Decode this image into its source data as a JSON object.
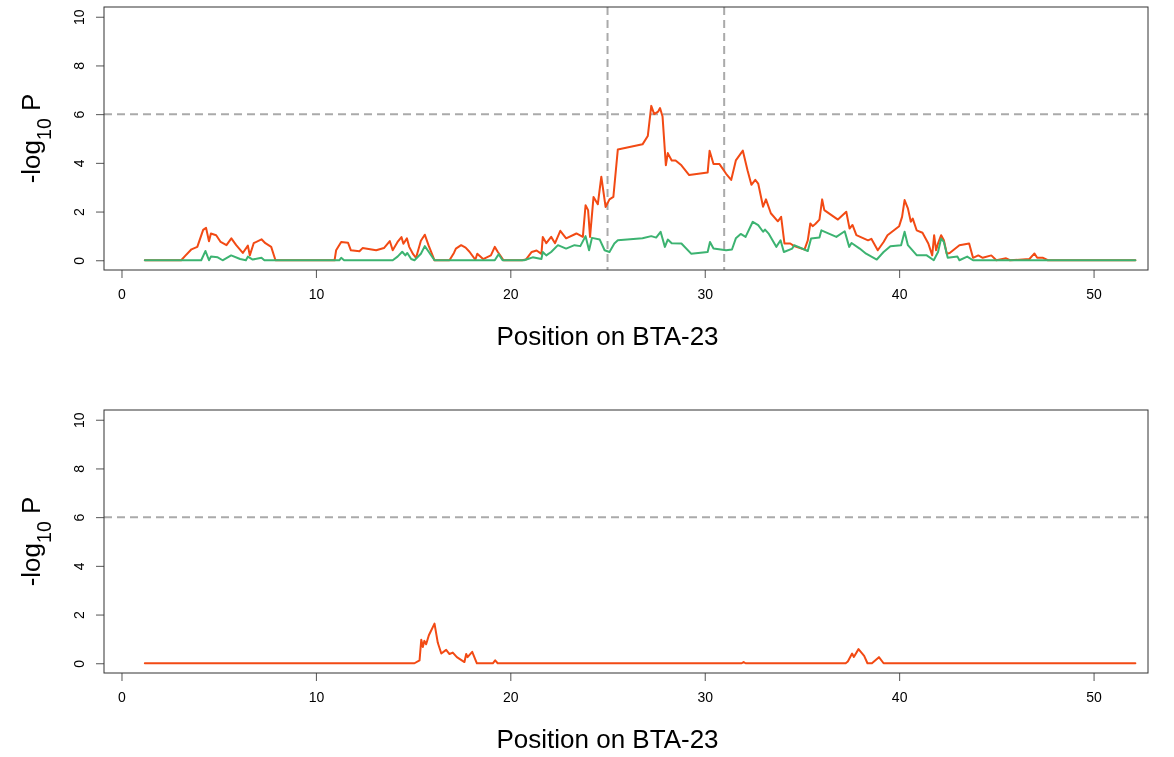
{
  "chart_data": [
    {
      "type": "line",
      "xlabel": "Position on BTA-23",
      "ylabel": "-log$_{10}$ P",
      "xlim": [
        -0.9,
        52.8
      ],
      "ylim": [
        -0.4,
        10.4
      ],
      "xticks": [
        0,
        10,
        20,
        30,
        40,
        50
      ],
      "yticks": [
        0,
        2,
        4,
        6,
        8,
        10
      ],
      "grid": false,
      "line_style": "solid",
      "marker": "none",
      "ref_lines": [
        {
          "axis": "y",
          "value": 6,
          "color": "#aaaaaa",
          "line_style": "dashed"
        },
        {
          "axis": "x",
          "value": 25,
          "color": "#aaaaaa",
          "line_style": "dashed"
        },
        {
          "axis": "x",
          "value": 31,
          "color": "#aaaaaa",
          "line_style": "dashed"
        }
      ],
      "series": [
        {
          "color": "#f24a14",
          "x": [
            1.2,
            3.07,
            3.3,
            3.6,
            3.9,
            4.2,
            4.35,
            4.5,
            4.6,
            4.87,
            5.1,
            5.4,
            5.65,
            5.9,
            6.24,
            6.5,
            6.6,
            6.8,
            7.2,
            7.4,
            7.7,
            7.92,
            10.96,
            11.04,
            11.3,
            11.65,
            11.8,
            12.24,
            12.4,
            13.1,
            13.5,
            13.8,
            13.95,
            14.2,
            14.4,
            14.5,
            14.68,
            14.8,
            15,
            15.15,
            15.4,
            15.6,
            15.8,
            16.1,
            16.87,
            17.1,
            17.2,
            17.47,
            17.7,
            17.9,
            18.2,
            18.3,
            18.6,
            19,
            19.2,
            19.35,
            19.65,
            20.6,
            20.8,
            21.1,
            21.35,
            21.6,
            21.67,
            21.85,
            22.1,
            22.3,
            22.57,
            22.87,
            23.4,
            23.73,
            23.87,
            24,
            24.1,
            24.28,
            24.5,
            24.68,
            24.9,
            25.1,
            25.3,
            25.53,
            26.8,
            27.07,
            27.25,
            27.4,
            27.6,
            27.7,
            27.83,
            28,
            28.1,
            28.3,
            28.5,
            28.8,
            29.2,
            30.15,
            30.25,
            30.45,
            30.76,
            31.1,
            31.36,
            31.6,
            31.96,
            32.2,
            32.4,
            32.6,
            32.75,
            33,
            33.15,
            33.4,
            33.76,
            33.93,
            34.1,
            34.4,
            34.6,
            35.13,
            35.3,
            35.43,
            35.55,
            35.7,
            35.9,
            36.04,
            36.15,
            36.85,
            37.28,
            37.45,
            37.6,
            37.8,
            38.4,
            38.57,
            38.9,
            39.2,
            39.4,
            40,
            40.15,
            40.28,
            40.45,
            40.6,
            40.7,
            40.9,
            41.2,
            41.5,
            41.7,
            41.8,
            41.9,
            42,
            42.16,
            42.3,
            42.45,
            42.6,
            43.1,
            43.6,
            43.8,
            44.07,
            44.3,
            44.74,
            45,
            45.5,
            45.7,
            46.7,
            46.96,
            47.1,
            47.4,
            47.65,
            52.15
          ],
          "values": [
            0,
            0,
            0.2,
            0.45,
            0.55,
            1.25,
            1.33,
            0.78,
            1.1,
            1.03,
            0.75,
            0.62,
            0.9,
            0.62,
            0.3,
            0.6,
            0.2,
            0.7,
            0.86,
            0.7,
            0.55,
            0,
            0,
            0.41,
            0.75,
            0.72,
            0.41,
            0.37,
            0.5,
            0.41,
            0.5,
            0.79,
            0.41,
            0.75,
            0.95,
            0.68,
            0.9,
            0.55,
            0.25,
            0.1,
            0.8,
            1.05,
            0.6,
            0,
            0,
            0.3,
            0.48,
            0.62,
            0.52,
            0.35,
            0.02,
            0.27,
            0.05,
            0.2,
            0.55,
            0.35,
            0,
            0,
            0.03,
            0.34,
            0.4,
            0.26,
            0.96,
            0.7,
            0.96,
            0.7,
            1.21,
            0.9,
            1.1,
            0.96,
            2.26,
            2.06,
            0.96,
            2.6,
            2.3,
            3.43,
            2.19,
            2.5,
            2.6,
            4.55,
            4.76,
            5.1,
            6.34,
            6,
            6.1,
            6.25,
            5.9,
            3.9,
            4.4,
            4.1,
            4.1,
            3.9,
            3.5,
            3.6,
            4.5,
            3.95,
            3.95,
            3.55,
            3.3,
            4.1,
            4.5,
            3.7,
            3.1,
            3.3,
            3.15,
            2.2,
            2.5,
            1.93,
            1.6,
            1.78,
            0.69,
            0.69,
            0.58,
            0.44,
            0.82,
            1.51,
            1.4,
            1.5,
            1.67,
            2.5,
            2.06,
            1.67,
            1.99,
            1.3,
            1.45,
            1.03,
            0.82,
            0.88,
            0.41,
            0.75,
            1.03,
            1.4,
            1.78,
            2.47,
            2.13,
            1.58,
            1.71,
            1.23,
            1.13,
            0.69,
            0.2,
            1.03,
            0.41,
            0.69,
            1.03,
            0.82,
            0.27,
            0.3,
            0.62,
            0.69,
            0.1,
            0.2,
            0.1,
            0.2,
            0,
            0.08,
            0,
            0.05,
            0.28,
            0.1,
            0.1,
            0,
            0
          ]
        },
        {
          "color": "#3cb371",
          "x": [
            1.2,
            4.1,
            4.32,
            4.5,
            4.6,
            4.95,
            5.2,
            5.64,
            6.1,
            6.4,
            6.5,
            6.75,
            7.2,
            7.35,
            11.2,
            11.3,
            11.45,
            13.95,
            14.2,
            14.44,
            14.6,
            14.7,
            14.9,
            15.07,
            15.4,
            15.6,
            15.8,
            16.1,
            19.2,
            19.4,
            19.6,
            20.7,
            20.9,
            21.15,
            21.6,
            21.67,
            21.85,
            22.1,
            22.45,
            22.87,
            23.3,
            23.6,
            23.87,
            24.05,
            24.2,
            24.6,
            24.85,
            25.1,
            25.35,
            25.53,
            26.8,
            27.25,
            27.5,
            27.73,
            27.95,
            28.1,
            28.3,
            28.8,
            29.3,
            30.15,
            30.27,
            30.45,
            31.1,
            31.4,
            31.6,
            31.85,
            32.1,
            32.47,
            32.75,
            33,
            33.1,
            33.3,
            33.68,
            33.9,
            34.07,
            34.5,
            34.6,
            35.3,
            35.47,
            35.9,
            36,
            36.77,
            37.2,
            37.43,
            37.55,
            37.97,
            38.3,
            38.85,
            39.2,
            39.55,
            40.1,
            40.28,
            40.45,
            40.9,
            41.4,
            41.78,
            42,
            42.16,
            42.3,
            42.5,
            43,
            43.1,
            43.5,
            43.8,
            52.15
          ],
          "values": [
            0,
            0,
            0.38,
            0,
            0.15,
            0.12,
            0,
            0.2,
            0.05,
            0,
            0.15,
            0.03,
            0.1,
            0,
            0,
            0.1,
            0,
            0,
            0.15,
            0.35,
            0.2,
            0.3,
            0.05,
            0,
            0.27,
            0.58,
            0.35,
            0,
            0,
            0.25,
            0,
            0,
            0.05,
            0.12,
            0.05,
            0.34,
            0.2,
            0.34,
            0.62,
            0.48,
            0.62,
            0.58,
            0.99,
            0.41,
            0.92,
            0.85,
            0.41,
            0.34,
            0.69,
            0.82,
            0.9,
            0.99,
            0.93,
            1.17,
            0.55,
            0.85,
            0.7,
            0.69,
            0.27,
            0.34,
            0.75,
            0.48,
            0.41,
            0.44,
            0.9,
            1.08,
            0.96,
            1.58,
            1.44,
            1.17,
            1.26,
            1.08,
            0.55,
            0.82,
            0.34,
            0.48,
            0.62,
            0.38,
            0.89,
            0.93,
            1.23,
            0.96,
            1.19,
            0.55,
            0.71,
            0.48,
            0.27,
            0.03,
            0.34,
            0.58,
            0.62,
            1.17,
            0.62,
            0.21,
            0.21,
            0,
            0.34,
            0.89,
            0.75,
            0.1,
            0.15,
            0,
            0.15,
            0,
            0
          ]
        }
      ]
    },
    {
      "type": "line",
      "xlabel": "Position on BTA-23",
      "ylabel": "-log$_{10}$ P",
      "xlim": [
        -0.9,
        52.8
      ],
      "ylim": [
        -0.4,
        10.4
      ],
      "xticks": [
        0,
        10,
        20,
        30,
        40,
        50
      ],
      "yticks": [
        0,
        2,
        4,
        6,
        8,
        10
      ],
      "grid": false,
      "line_style": "solid",
      "marker": "none",
      "ref_lines": [
        {
          "axis": "y",
          "value": 6,
          "color": "#aaaaaa",
          "line_style": "dashed"
        }
      ],
      "series": [
        {
          "color": "#f24a14",
          "x": [
            1.2,
            15.07,
            15.33,
            15.42,
            15.5,
            15.58,
            15.67,
            15.81,
            16.1,
            16.27,
            16.45,
            16.7,
            16.87,
            17.04,
            17.25,
            17.64,
            17.73,
            17.8,
            18.04,
            18.28,
            19.1,
            19.22,
            19.35,
            31.9,
            32,
            32.1,
            37.25,
            37.36,
            37.58,
            37.67,
            37.91,
            38.2,
            38.37,
            38.6,
            38.96,
            39.2,
            52.15
          ],
          "values": [
            0,
            0,
            0.12,
            0.97,
            0.67,
            0.92,
            0.78,
            1.15,
            1.63,
            0.84,
            0.4,
            0.55,
            0.38,
            0.44,
            0.25,
            0.05,
            0.38,
            0.25,
            0.47,
            0,
            0,
            0.12,
            0,
            0,
            0.05,
            0,
            0,
            0.07,
            0.4,
            0.26,
            0.58,
            0.3,
            0,
            0,
            0.25,
            0,
            0
          ]
        }
      ]
    }
  ]
}
